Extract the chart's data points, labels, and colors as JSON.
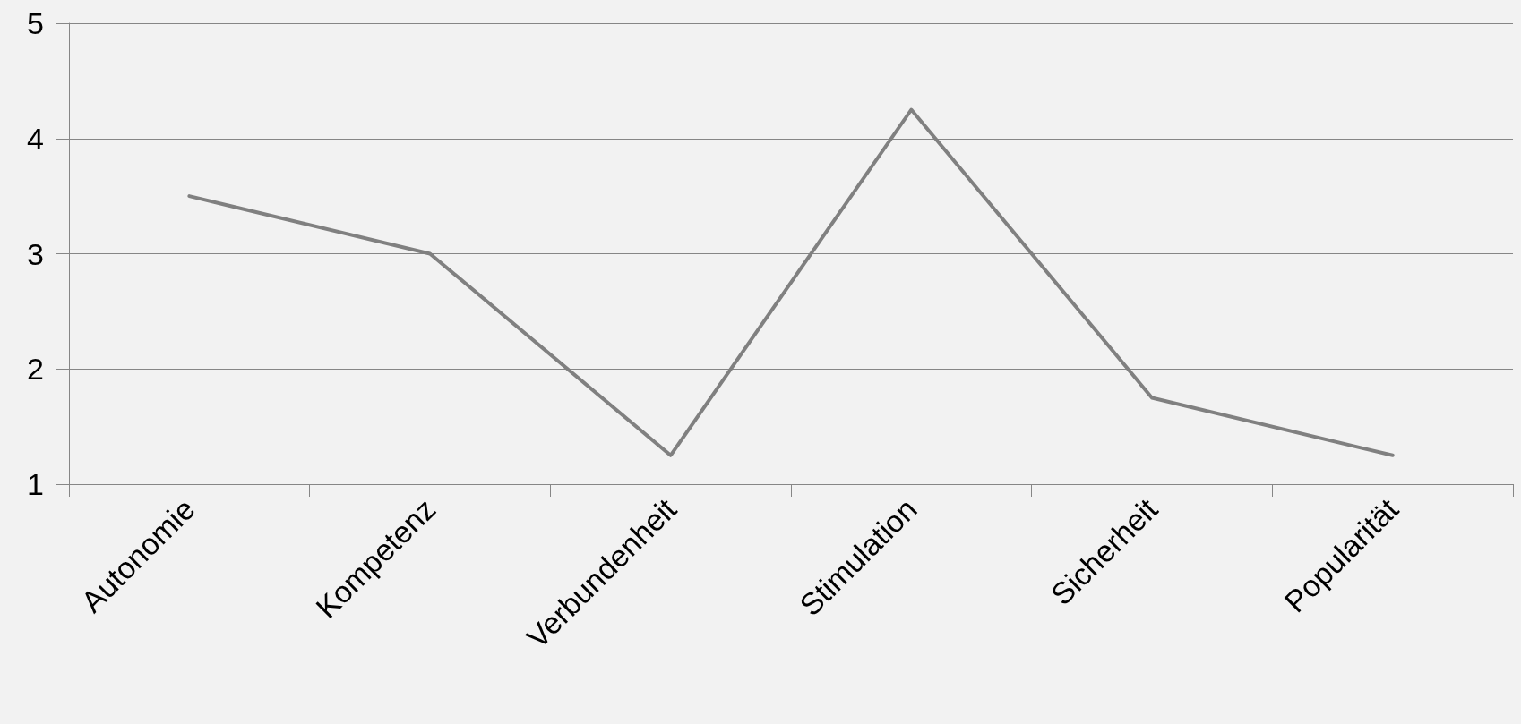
{
  "chart_data": {
    "type": "line",
    "categories": [
      "Autonomie",
      "Kompetenz",
      "Verbundenheit",
      "Stimulation",
      "Sicherheit",
      "Popularität"
    ],
    "series": [
      {
        "color": "#808080",
        "values": [
          3.5,
          3.0,
          1.25,
          4.25,
          1.75,
          1.25
        ]
      }
    ],
    "ylim": [
      1,
      5
    ],
    "yticks": [
      1,
      2,
      3,
      4,
      5
    ],
    "grid": "y",
    "marker": "none",
    "line_style": "solid"
  }
}
